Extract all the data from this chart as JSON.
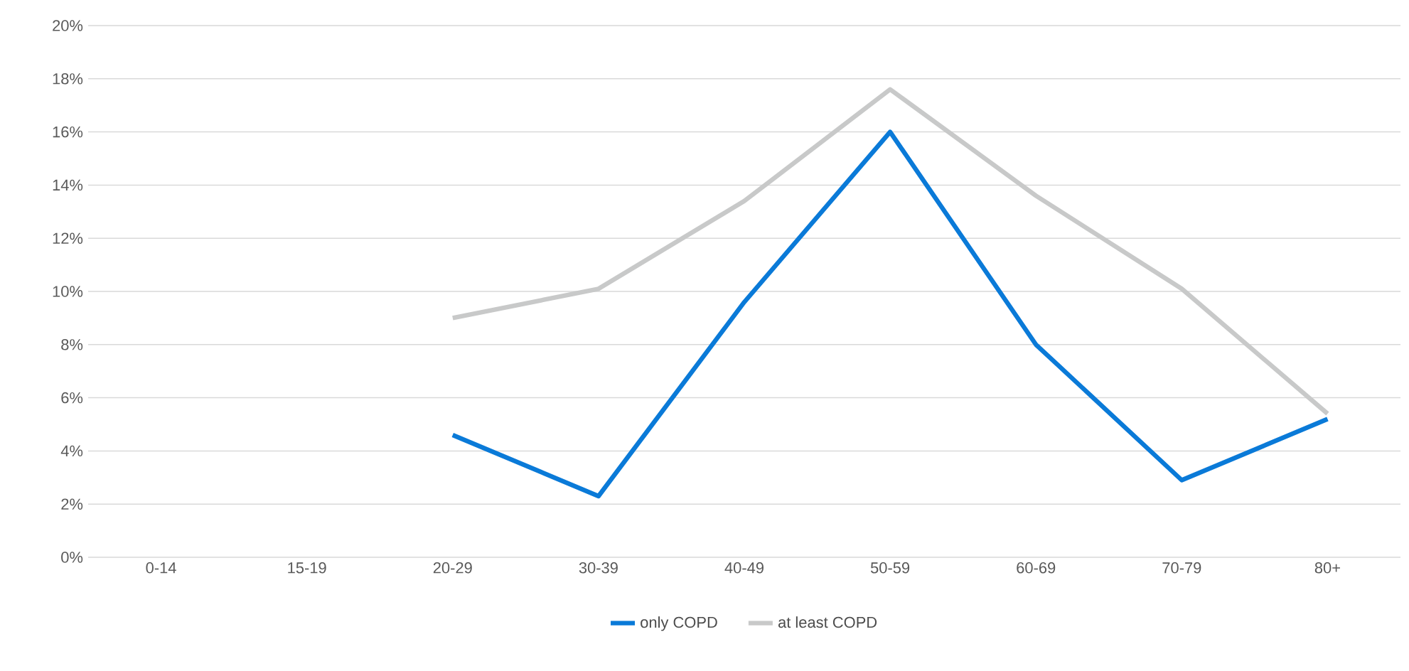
{
  "chart_data": {
    "type": "line",
    "categories": [
      "0-14",
      "15-19",
      "20-29",
      "30-39",
      "40-49",
      "50-59",
      "60-69",
      "70-79",
      "80+"
    ],
    "series": [
      {
        "name": "only COPD",
        "color": "#0a7ad8",
        "values": [
          null,
          null,
          4.6,
          2.3,
          9.6,
          16.0,
          8.0,
          2.9,
          5.2
        ]
      },
      {
        "name": "at least COPD",
        "color": "#c8c9c9",
        "values": [
          null,
          null,
          9.0,
          10.1,
          13.4,
          17.6,
          13.6,
          10.1,
          5.4
        ]
      }
    ],
    "ylim": [
      0,
      20
    ],
    "yticks": [
      {
        "value": 0,
        "label": "0%"
      },
      {
        "value": 2,
        "label": "2%"
      },
      {
        "value": 4,
        "label": "4%"
      },
      {
        "value": 6,
        "label": "6%"
      },
      {
        "value": 8,
        "label": "8%"
      },
      {
        "value": 10,
        "label": "10%"
      },
      {
        "value": 12,
        "label": "12%"
      },
      {
        "value": 14,
        "label": "14%"
      },
      {
        "value": 16,
        "label": "16%"
      },
      {
        "value": 18,
        "label": "18%"
      },
      {
        "value": 20,
        "label": "20%"
      }
    ],
    "grid": "y",
    "legend": "bottom",
    "marker": "none",
    "line_style": "solid"
  }
}
